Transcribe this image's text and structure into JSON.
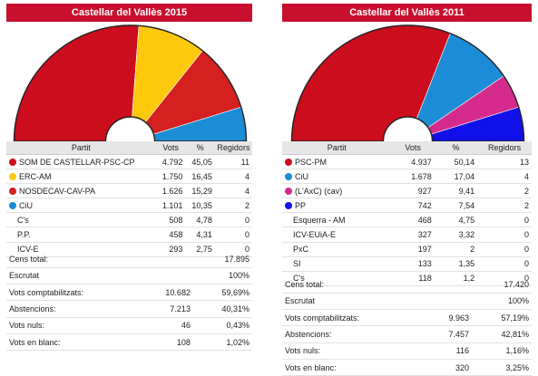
{
  "colors": {
    "title_bar": "#c8102e"
  },
  "panels": [
    {
      "title": "Castellar del Vallès 2015",
      "headers": [
        "Partit",
        "Vots",
        "%",
        "Regidors"
      ],
      "parties": [
        {
          "name": "SOM DE CASTELLAR-PSC-CP",
          "votes": "4.792",
          "pct": "45,05",
          "seats": "11",
          "color": "#cc0d1d"
        },
        {
          "name": "ERC-AM",
          "votes": "1.750",
          "pct": "16,45",
          "seats": "4",
          "color": "#fec80c"
        },
        {
          "name": "NOSDECAV-CAV-PA",
          "votes": "1.626",
          "pct": "15,29",
          "seats": "4",
          "color": "#d4201f"
        },
        {
          "name": "CiU",
          "votes": "1.101",
          "pct": "10,35",
          "seats": "2",
          "color": "#1c8cd6"
        },
        {
          "name": "C's",
          "votes": "508",
          "pct": "4,78",
          "seats": "0",
          "color": ""
        },
        {
          "name": "P.P.",
          "votes": "458",
          "pct": "4,31",
          "seats": "0",
          "color": ""
        },
        {
          "name": "ICV-E",
          "votes": "293",
          "pct": "2,75",
          "seats": "0",
          "color": ""
        }
      ],
      "stats": [
        {
          "label": "Cens total:",
          "v1": "",
          "v2": "17.895"
        },
        {
          "label": "Escrutat",
          "v1": "",
          "v2": "100%"
        },
        {
          "label": "Vots comptabilitzats:",
          "v1": "10.682",
          "v2": "59,69%"
        },
        {
          "label": "Abstencions:",
          "v1": "7.213",
          "v2": "40,31%"
        },
        {
          "label": "Vots nuls:",
          "v1": "46",
          "v2": "0,43%"
        },
        {
          "label": "Vots en blanc:",
          "v1": "108",
          "v2": "1,02%"
        }
      ]
    },
    {
      "title": "Castellar del Vallès 2011",
      "headers": [
        "Partit",
        "Vots",
        "%",
        "Regidors"
      ],
      "parties": [
        {
          "name": "PSC-PM",
          "votes": "4.937",
          "pct": "50,14",
          "seats": "13",
          "color": "#cc0d1d"
        },
        {
          "name": "CiU",
          "votes": "1.678",
          "pct": "17,04",
          "seats": "4",
          "color": "#1c8cd6"
        },
        {
          "name": "(L'AxC) (cav)",
          "votes": "927",
          "pct": "9,41",
          "seats": "2",
          "color": "#d42b8c"
        },
        {
          "name": "PP",
          "votes": "742",
          "pct": "7,54",
          "seats": "2",
          "color": "#1010e8"
        },
        {
          "name": "Esquerra - AM",
          "votes": "468",
          "pct": "4,75",
          "seats": "0",
          "color": ""
        },
        {
          "name": "ICV-EUiA-E",
          "votes": "327",
          "pct": "3,32",
          "seats": "0",
          "color": ""
        },
        {
          "name": "PxC",
          "votes": "197",
          "pct": "2",
          "seats": "0",
          "color": ""
        },
        {
          "name": "SI",
          "votes": "133",
          "pct": "1,35",
          "seats": "0",
          "color": ""
        },
        {
          "name": "C's",
          "votes": "118",
          "pct": "1,2",
          "seats": "0",
          "color": ""
        }
      ],
      "stats": [
        {
          "label": "Cens total:",
          "v1": "",
          "v2": "17.420"
        },
        {
          "label": "Escrutat",
          "v1": "",
          "v2": "100%"
        },
        {
          "label": "Vots comptabilitzats:",
          "v1": "9.963",
          "v2": "57,19%"
        },
        {
          "label": "Abstencions:",
          "v1": "7.457",
          "v2": "42,81%"
        },
        {
          "label": "Vots nuls:",
          "v1": "116",
          "v2": "1,16%"
        },
        {
          "label": "Vots en blanc:",
          "v1": "320",
          "v2": "3,25%"
        }
      ]
    }
  ],
  "chart_data": [
    {
      "type": "pie",
      "title": "Castellar del Vallès 2015",
      "subtype": "half-donut (seats)",
      "categories": [
        "SOM DE CASTELLAR-PSC-CP",
        "ERC-AM",
        "NOSDECAV-CAV-PA",
        "CiU"
      ],
      "values": [
        11,
        4,
        4,
        2
      ],
      "colors": [
        "#cc0d1d",
        "#fec80c",
        "#d4201f",
        "#1c8cd6"
      ]
    },
    {
      "type": "pie",
      "title": "Castellar del Vallès 2011",
      "subtype": "half-donut (seats)",
      "categories": [
        "PSC-PM",
        "CiU",
        "(L'AxC) (cav)",
        "PP"
      ],
      "values": [
        13,
        4,
        2,
        2
      ],
      "colors": [
        "#cc0d1d",
        "#1c8cd6",
        "#d42b8c",
        "#1010e8"
      ]
    }
  ]
}
